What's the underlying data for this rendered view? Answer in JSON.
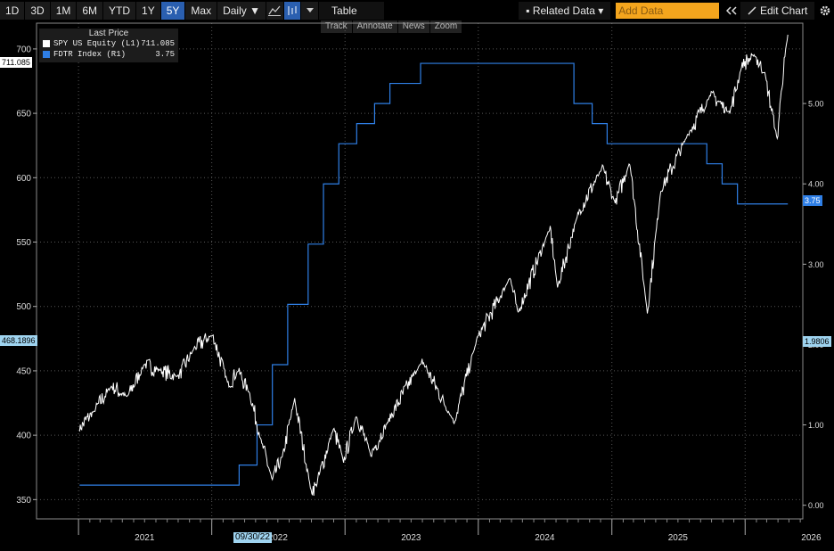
{
  "toolbar": {
    "ranges": [
      "1D",
      "3D",
      "1M",
      "6M",
      "YTD",
      "1Y",
      "5Y",
      "Max"
    ],
    "active_range": "5Y",
    "period": "Daily ▼",
    "table_label": "Table",
    "related_label": "▪ Related Data ▾",
    "add_data_placeholder": "Add Data",
    "edit_label": "Edit Chart"
  },
  "subtools": [
    "Track",
    "Annotate",
    "News",
    "Zoom"
  ],
  "legend": {
    "header": "Last Price",
    "items": [
      {
        "name": "SPY US Equity  (L1)",
        "value": "711.085",
        "color": "#ffffff"
      },
      {
        "name": "FDTR Index  (R1)",
        "value": "3.75",
        "color": "#2f7fe6"
      }
    ]
  },
  "tags": {
    "spy_last": "711.085",
    "left_cursor": "468.1896",
    "fdtr_last": "3.75",
    "right_cursor": "1.9806",
    "date_cursor": "09/30/22"
  },
  "chart_data": {
    "type": "line",
    "x_labels": [
      "2021",
      "2022",
      "2023",
      "2024",
      "2025",
      "2026"
    ],
    "left_axis": {
      "ticks": [
        350,
        400,
        450,
        500,
        550,
        600,
        650,
        700
      ],
      "range": [
        335,
        720
      ]
    },
    "right_axis": {
      "ticks": [
        "0.00",
        "1.00",
        "2.00",
        "3.00",
        "4.00",
        "5.00"
      ],
      "range": [
        -0.17,
        6.0
      ]
    },
    "series": [
      {
        "name": "SPY US Equity",
        "axis": "left",
        "color": "#ffffff",
        "points": [
          [
            "2021-01-04",
            405
          ],
          [
            "2021-02-15",
            420
          ],
          [
            "2021-04-01",
            438
          ],
          [
            "2021-05-15",
            430
          ],
          [
            "2021-07-01",
            455
          ],
          [
            "2021-08-15",
            450
          ],
          [
            "2021-10-01",
            445
          ],
          [
            "2021-11-15",
            468
          ],
          [
            "2022-01-03",
            478
          ],
          [
            "2022-02-15",
            440
          ],
          [
            "2022-03-15",
            450
          ],
          [
            "2022-04-15",
            432
          ],
          [
            "2022-05-20",
            392
          ],
          [
            "2022-06-16",
            365
          ],
          [
            "2022-07-15",
            385
          ],
          [
            "2022-08-16",
            428
          ],
          [
            "2022-09-30",
            357
          ],
          [
            "2022-10-15",
            362
          ],
          [
            "2022-11-30",
            405
          ],
          [
            "2022-12-28",
            380
          ],
          [
            "2023-02-01",
            415
          ],
          [
            "2023-03-13",
            385
          ],
          [
            "2023-05-01",
            412
          ],
          [
            "2023-07-31",
            458
          ],
          [
            "2023-10-27",
            410
          ],
          [
            "2023-12-29",
            475
          ],
          [
            "2024-03-28",
            522
          ],
          [
            "2024-04-19",
            495
          ],
          [
            "2024-07-16",
            562
          ],
          [
            "2024-08-05",
            515
          ],
          [
            "2024-09-30",
            572
          ],
          [
            "2024-12-06",
            608
          ],
          [
            "2025-01-10",
            580
          ],
          [
            "2025-02-19",
            612
          ],
          [
            "2025-04-08",
            495
          ],
          [
            "2025-05-15",
            590
          ],
          [
            "2025-07-31",
            635
          ],
          [
            "2025-09-30",
            665
          ],
          [
            "2025-11-20",
            650
          ],
          [
            "2025-12-24",
            688
          ],
          [
            "2026-01-28",
            695
          ],
          [
            "2026-02-24",
            680
          ],
          [
            "2026-03-30",
            630
          ],
          [
            "2026-04-10",
            668
          ],
          [
            "2026-04-28",
            711.085
          ]
        ]
      },
      {
        "name": "FDTR Index",
        "axis": "right",
        "color": "#2f7fe6",
        "steps": [
          [
            "2021-01-04",
            0.25
          ],
          [
            "2022-03-17",
            0.5
          ],
          [
            "2022-05-05",
            1.0
          ],
          [
            "2022-06-16",
            1.75
          ],
          [
            "2022-07-28",
            2.5
          ],
          [
            "2022-09-22",
            3.25
          ],
          [
            "2022-11-03",
            4.0
          ],
          [
            "2022-12-15",
            4.5
          ],
          [
            "2023-02-02",
            4.75
          ],
          [
            "2023-03-23",
            5.0
          ],
          [
            "2023-05-04",
            5.25
          ],
          [
            "2023-07-27",
            5.5
          ],
          [
            "2024-09-19",
            5.0
          ],
          [
            "2024-11-08",
            4.75
          ],
          [
            "2024-12-19",
            4.5
          ],
          [
            "2025-09-18",
            4.25
          ],
          [
            "2025-10-30",
            4.0
          ],
          [
            "2025-12-11",
            3.75
          ],
          [
            "2026-04-28",
            3.75
          ]
        ]
      }
    ]
  }
}
